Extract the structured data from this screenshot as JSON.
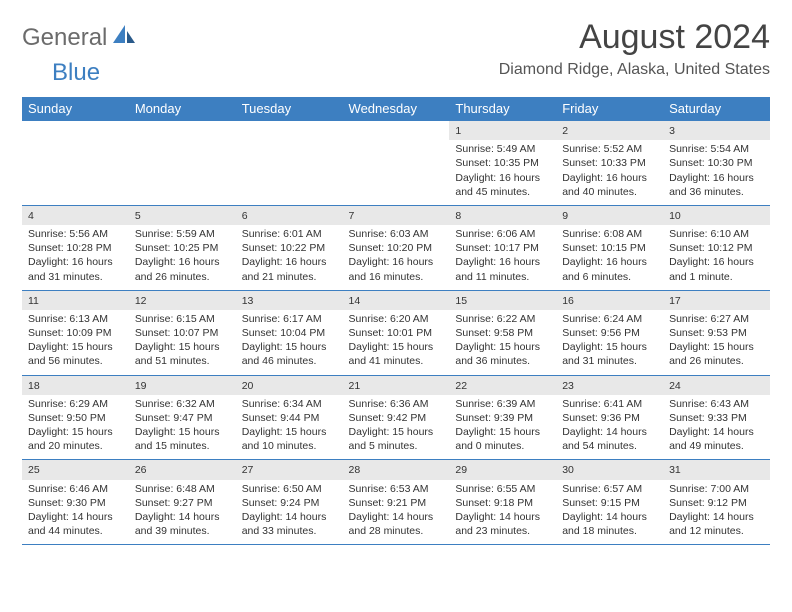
{
  "logo": {
    "text1": "General",
    "text2": "Blue"
  },
  "title": "August 2024",
  "location": "Diamond Ridge, Alaska, United States",
  "colors": {
    "header_bg": "#3d7fc1",
    "header_text": "#ffffff",
    "border": "#3d7fc1",
    "daynum_bg": "#e8e8e8",
    "body_text": "#333333",
    "logo_gray": "#6b6b6b",
    "logo_blue": "#3d7fc1"
  },
  "daysOfWeek": [
    "Sunday",
    "Monday",
    "Tuesday",
    "Wednesday",
    "Thursday",
    "Friday",
    "Saturday"
  ],
  "weeks": [
    [
      {
        "empty": true
      },
      {
        "empty": true
      },
      {
        "empty": true
      },
      {
        "empty": true
      },
      {
        "day": "1",
        "sunrise": "5:49 AM",
        "sunset": "10:35 PM",
        "daylight": "16 hours and 45 minutes."
      },
      {
        "day": "2",
        "sunrise": "5:52 AM",
        "sunset": "10:33 PM",
        "daylight": "16 hours and 40 minutes."
      },
      {
        "day": "3",
        "sunrise": "5:54 AM",
        "sunset": "10:30 PM",
        "daylight": "16 hours and 36 minutes."
      }
    ],
    [
      {
        "day": "4",
        "sunrise": "5:56 AM",
        "sunset": "10:28 PM",
        "daylight": "16 hours and 31 minutes."
      },
      {
        "day": "5",
        "sunrise": "5:59 AM",
        "sunset": "10:25 PM",
        "daylight": "16 hours and 26 minutes."
      },
      {
        "day": "6",
        "sunrise": "6:01 AM",
        "sunset": "10:22 PM",
        "daylight": "16 hours and 21 minutes."
      },
      {
        "day": "7",
        "sunrise": "6:03 AM",
        "sunset": "10:20 PM",
        "daylight": "16 hours and 16 minutes."
      },
      {
        "day": "8",
        "sunrise": "6:06 AM",
        "sunset": "10:17 PM",
        "daylight": "16 hours and 11 minutes."
      },
      {
        "day": "9",
        "sunrise": "6:08 AM",
        "sunset": "10:15 PM",
        "daylight": "16 hours and 6 minutes."
      },
      {
        "day": "10",
        "sunrise": "6:10 AM",
        "sunset": "10:12 PM",
        "daylight": "16 hours and 1 minute."
      }
    ],
    [
      {
        "day": "11",
        "sunrise": "6:13 AM",
        "sunset": "10:09 PM",
        "daylight": "15 hours and 56 minutes."
      },
      {
        "day": "12",
        "sunrise": "6:15 AM",
        "sunset": "10:07 PM",
        "daylight": "15 hours and 51 minutes."
      },
      {
        "day": "13",
        "sunrise": "6:17 AM",
        "sunset": "10:04 PM",
        "daylight": "15 hours and 46 minutes."
      },
      {
        "day": "14",
        "sunrise": "6:20 AM",
        "sunset": "10:01 PM",
        "daylight": "15 hours and 41 minutes."
      },
      {
        "day": "15",
        "sunrise": "6:22 AM",
        "sunset": "9:58 PM",
        "daylight": "15 hours and 36 minutes."
      },
      {
        "day": "16",
        "sunrise": "6:24 AM",
        "sunset": "9:56 PM",
        "daylight": "15 hours and 31 minutes."
      },
      {
        "day": "17",
        "sunrise": "6:27 AM",
        "sunset": "9:53 PM",
        "daylight": "15 hours and 26 minutes."
      }
    ],
    [
      {
        "day": "18",
        "sunrise": "6:29 AM",
        "sunset": "9:50 PM",
        "daylight": "15 hours and 20 minutes."
      },
      {
        "day": "19",
        "sunrise": "6:32 AM",
        "sunset": "9:47 PM",
        "daylight": "15 hours and 15 minutes."
      },
      {
        "day": "20",
        "sunrise": "6:34 AM",
        "sunset": "9:44 PM",
        "daylight": "15 hours and 10 minutes."
      },
      {
        "day": "21",
        "sunrise": "6:36 AM",
        "sunset": "9:42 PM",
        "daylight": "15 hours and 5 minutes."
      },
      {
        "day": "22",
        "sunrise": "6:39 AM",
        "sunset": "9:39 PM",
        "daylight": "15 hours and 0 minutes."
      },
      {
        "day": "23",
        "sunrise": "6:41 AM",
        "sunset": "9:36 PM",
        "daylight": "14 hours and 54 minutes."
      },
      {
        "day": "24",
        "sunrise": "6:43 AM",
        "sunset": "9:33 PM",
        "daylight": "14 hours and 49 minutes."
      }
    ],
    [
      {
        "day": "25",
        "sunrise": "6:46 AM",
        "sunset": "9:30 PM",
        "daylight": "14 hours and 44 minutes."
      },
      {
        "day": "26",
        "sunrise": "6:48 AM",
        "sunset": "9:27 PM",
        "daylight": "14 hours and 39 minutes."
      },
      {
        "day": "27",
        "sunrise": "6:50 AM",
        "sunset": "9:24 PM",
        "daylight": "14 hours and 33 minutes."
      },
      {
        "day": "28",
        "sunrise": "6:53 AM",
        "sunset": "9:21 PM",
        "daylight": "14 hours and 28 minutes."
      },
      {
        "day": "29",
        "sunrise": "6:55 AM",
        "sunset": "9:18 PM",
        "daylight": "14 hours and 23 minutes."
      },
      {
        "day": "30",
        "sunrise": "6:57 AM",
        "sunset": "9:15 PM",
        "daylight": "14 hours and 18 minutes."
      },
      {
        "day": "31",
        "sunrise": "7:00 AM",
        "sunset": "9:12 PM",
        "daylight": "14 hours and 12 minutes."
      }
    ]
  ],
  "labels": {
    "sunrise": "Sunrise:",
    "sunset": "Sunset:",
    "daylight": "Daylight:"
  }
}
